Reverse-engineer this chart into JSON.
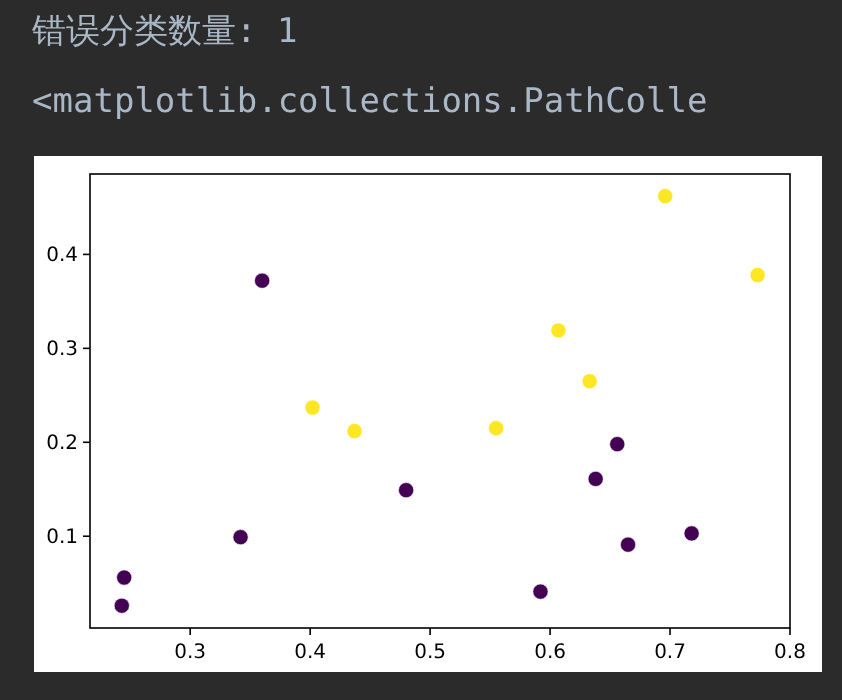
{
  "chart_data": {
    "type": "scatter",
    "annotations": [
      "错误分类数量: 1",
      "<matplotlib.collections.PathColle"
    ],
    "series": [
      {
        "color": "#440154",
        "x": [
          0.245,
          0.243,
          0.342,
          0.36,
          0.48,
          0.592,
          0.638,
          0.656,
          0.665,
          0.718
        ],
        "values": [
          0.056,
          0.026,
          0.099,
          0.372,
          0.149,
          0.041,
          0.161,
          0.198,
          0.091,
          0.103
        ]
      },
      {
        "color": "#fde725",
        "x": [
          0.402,
          0.437,
          0.555,
          0.607,
          0.633,
          0.696,
          0.773
        ],
        "values": [
          0.237,
          0.212,
          0.215,
          0.319,
          0.265,
          0.462,
          0.378
        ]
      }
    ],
    "xlim": [
      0.2165,
      0.8
    ],
    "ylim": [
      0.0023,
      0.4856
    ],
    "xticks": [
      0.3,
      0.4,
      0.5,
      0.6,
      0.7,
      0.8
    ],
    "yticks": [
      0.1,
      0.2,
      0.3,
      0.4
    ]
  }
}
